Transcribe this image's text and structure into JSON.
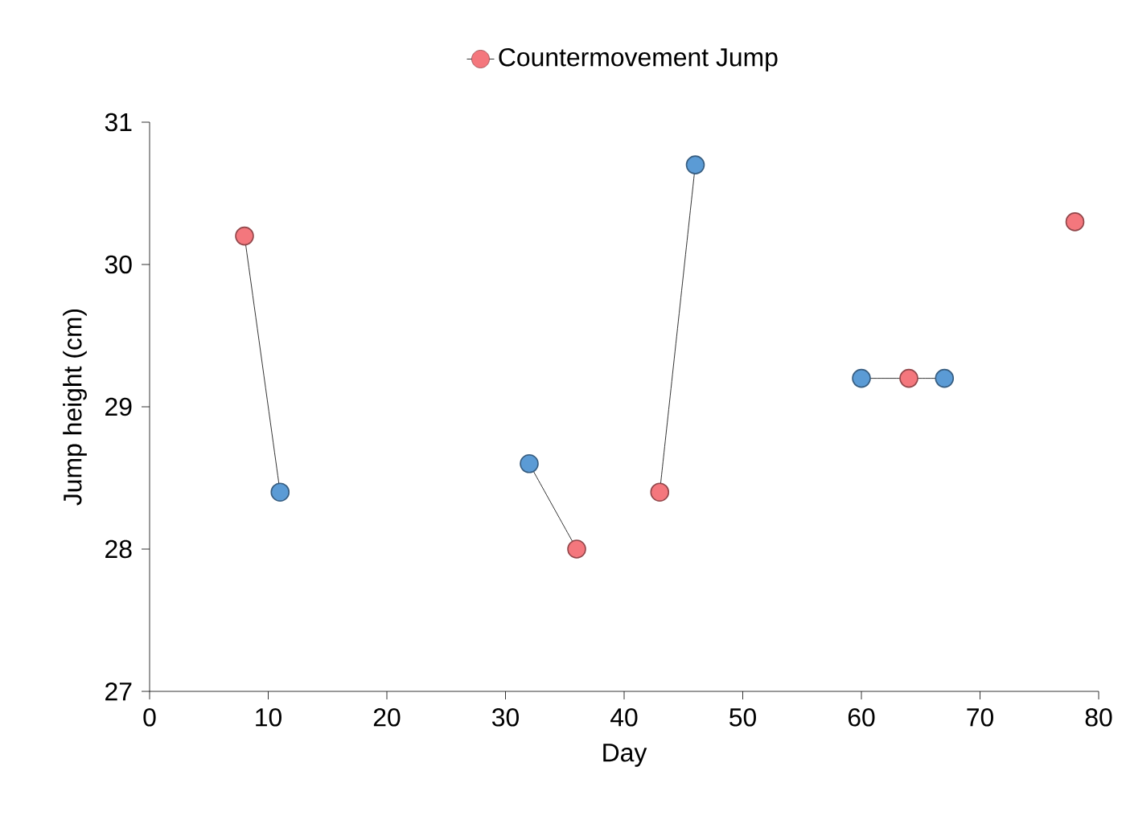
{
  "chart_data": {
    "type": "line",
    "xlabel": "Day",
    "ylabel": "Jump height (cm)",
    "series": [
      {
        "name": "Countermovement Jump",
        "color": "#000000",
        "x": [
          8,
          11,
          20,
          32,
          36,
          40,
          43,
          46,
          55,
          60,
          64,
          67,
          72,
          78
        ],
        "values": [
          30.2,
          28.4,
          null,
          28.6,
          28.0,
          null,
          28.4,
          30.7,
          null,
          29.2,
          29.2,
          29.2,
          null,
          30.3
        ],
        "colors": [
          "#f4777d",
          "#5b9bd5",
          null,
          "#5b9bd5",
          "#f4777d",
          null,
          "#f4777d",
          "#5b9bd5",
          null,
          "#5b9bd5",
          "#f4777d",
          "#5b9bd5",
          null,
          "#f4777d"
        ]
      }
    ],
    "xlim": [
      0,
      80
    ],
    "ylim": [
      27,
      31
    ],
    "xticks": [
      0,
      10,
      20,
      30,
      40,
      50,
      60,
      70,
      80
    ],
    "yticks": [
      27,
      28,
      29,
      30,
      31
    ],
    "grid": false,
    "legend": "top",
    "marker": "circle",
    "line_style": "solid"
  }
}
